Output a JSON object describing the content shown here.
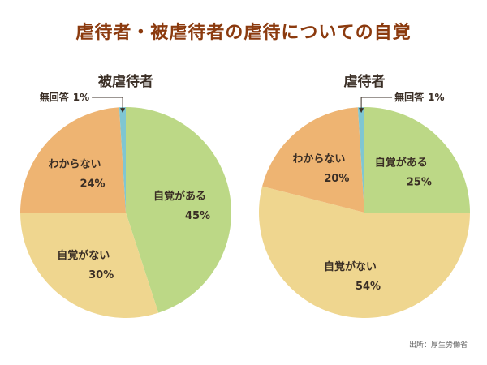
{
  "title": "虐待者・被虐待者の虐待についての自覚",
  "source": "出所：厚生労働省",
  "colors": {
    "title": "#8b3a0e",
    "自覚がある": "#bcd886",
    "自覚がない": "#efd68f",
    "わからない": "#eeb472",
    "無回答": "#7fc6d2"
  },
  "chart_data": [
    {
      "type": "pie",
      "title": "被虐待者",
      "slices": [
        {
          "label": "自覚がある",
          "value": 45,
          "value_label": "45%"
        },
        {
          "label": "自覚がない",
          "value": 30,
          "value_label": "30%"
        },
        {
          "label": "わからない",
          "value": 24,
          "value_label": "24%"
        },
        {
          "label": "無回答",
          "value": 1,
          "value_label": "1%"
        }
      ]
    },
    {
      "type": "pie",
      "title": "虐待者",
      "slices": [
        {
          "label": "自覚がある",
          "value": 25,
          "value_label": "25%"
        },
        {
          "label": "自覚がない",
          "value": 54,
          "value_label": "54%"
        },
        {
          "label": "わからない",
          "value": 20,
          "value_label": "20%"
        },
        {
          "label": "無回答",
          "value": 1,
          "value_label": "1%"
        }
      ]
    }
  ]
}
